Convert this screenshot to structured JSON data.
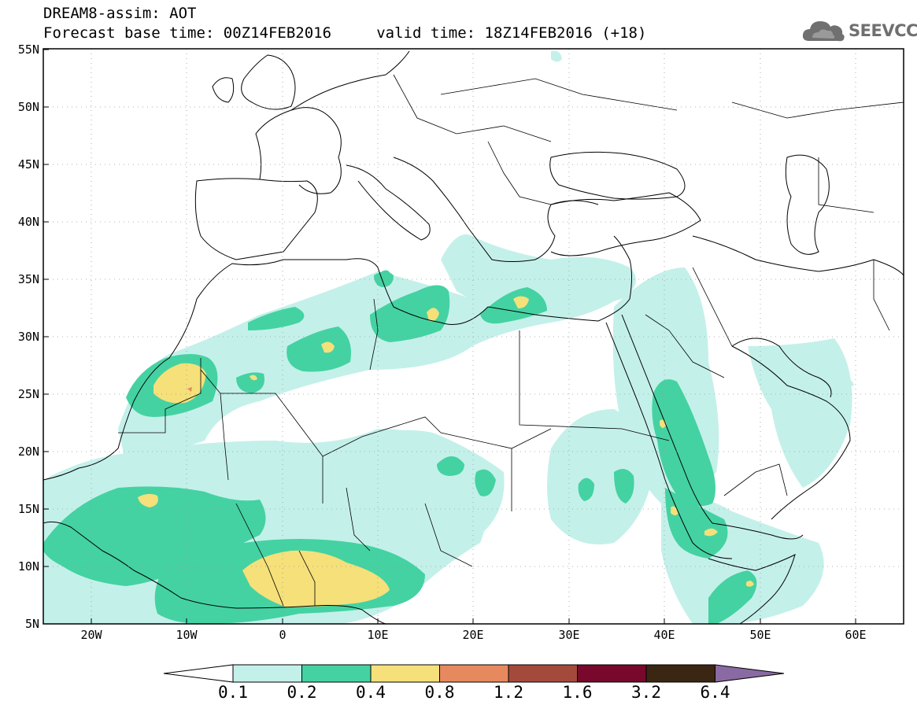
{
  "title": {
    "line1": "DREAM8-assim: AOT",
    "line2": "Forecast base time: 00Z14FEB2016     valid time: 18Z14FEB2016 (+18)"
  },
  "logo": {
    "icon": "cloud-icon",
    "text": "SEEVCCC"
  },
  "map": {
    "lon_range": [
      -25,
      65
    ],
    "lat_range": [
      5,
      55
    ],
    "lat_labels": [
      "5N",
      "10N",
      "15N",
      "20N",
      "25N",
      "30N",
      "35N",
      "40N",
      "45N",
      "50N",
      "55N"
    ],
    "lon_labels": [
      "20W",
      "10W",
      "0",
      "10E",
      "20E",
      "30E",
      "40E",
      "50E",
      "60E"
    ],
    "gridlines": "dotted"
  },
  "colorbar": {
    "thresholds": [
      "0.1",
      "0.2",
      "0.4",
      "0.8",
      "1.2",
      "1.6",
      "3.2",
      "6.4"
    ],
    "colors": [
      "#ffffff",
      "#c4f0ea",
      "#44d2a2",
      "#f5e07a",
      "#e6895e",
      "#a44a3c",
      "#78092c",
      "#3b2613",
      "#8a6aa2"
    ]
  },
  "colors": {
    "aot_0_1": "#c4f0ea",
    "aot_0_2": "#44d2a2",
    "aot_0_4": "#f5e07a",
    "aot_0_8": "#e6895e"
  }
}
